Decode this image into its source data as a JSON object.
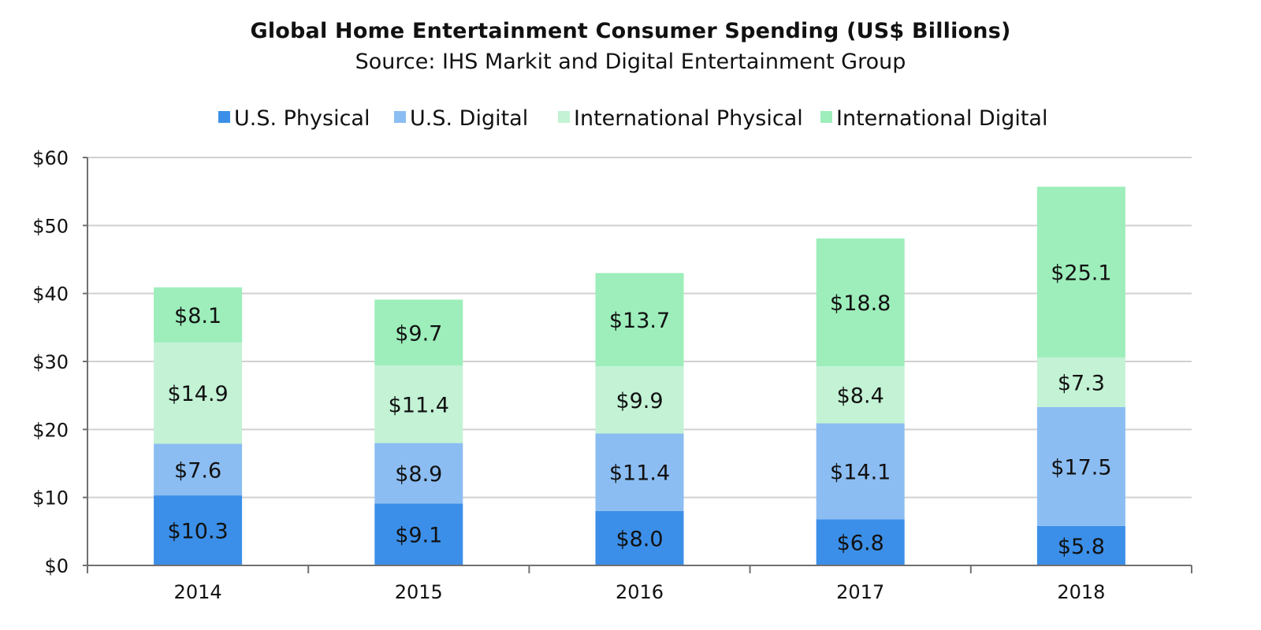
{
  "title": "Global Home Entertainment Consumer Spending (US$ Billions)",
  "subtitle": "Source: IHS Markit and Digital Entertainment Group",
  "chart_data": {
    "type": "bar",
    "stacked": true,
    "categories": [
      "2014",
      "2015",
      "2016",
      "2017",
      "2018"
    ],
    "series": [
      {
        "name": "U.S. Physical",
        "color": "#3b8fe8",
        "values": [
          10.3,
          9.1,
          8.0,
          6.8,
          5.8
        ],
        "labels": [
          "$10.3",
          "$9.1",
          "$8.0",
          "$6.8",
          "$5.8"
        ]
      },
      {
        "name": "U.S. Digital",
        "color": "#8bbdf2",
        "values": [
          7.6,
          8.9,
          11.4,
          14.1,
          17.5
        ],
        "labels": [
          "$7.6",
          "$8.9",
          "$11.4",
          "$14.1",
          "$17.5"
        ]
      },
      {
        "name": "International Physical",
        "color": "#c3f2d5",
        "values": [
          14.9,
          11.4,
          9.9,
          8.4,
          7.3
        ],
        "labels": [
          "$14.9",
          "$11.4",
          "$9.9",
          "$8.4",
          "$7.3"
        ]
      },
      {
        "name": "International Digital",
        "color": "#9deebb",
        "values": [
          8.1,
          9.7,
          13.7,
          18.8,
          25.1
        ],
        "labels": [
          "$8.1",
          "$9.7",
          "$13.7",
          "$18.8",
          "$25.1"
        ]
      }
    ],
    "ylim": [
      0,
      60
    ],
    "yticks": [
      0,
      10,
      20,
      30,
      40,
      50,
      60
    ],
    "ytick_labels": [
      "$0",
      "$10",
      "$20",
      "$30",
      "$40",
      "$50",
      "$60"
    ],
    "xlabel": "",
    "ylabel": "",
    "grid": true,
    "legend_position": "top"
  }
}
